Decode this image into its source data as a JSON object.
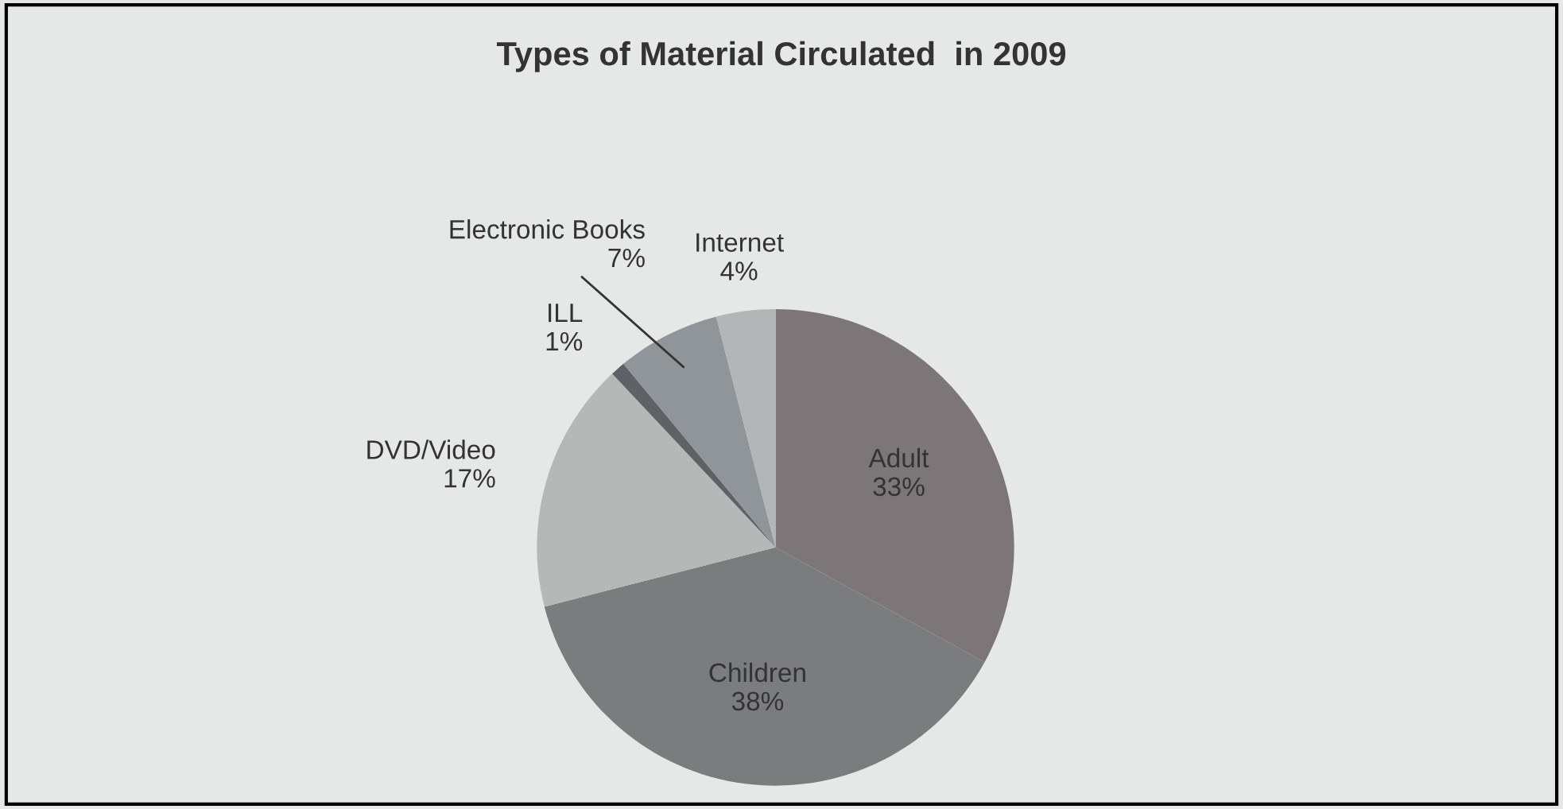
{
  "chart_data": {
    "type": "pie",
    "title": "Types of Material Circulated  in 2009",
    "categories": [
      "Adult",
      "Children",
      "DVD/Video",
      "ILL",
      "Electronic Books",
      "Internet"
    ],
    "values": [
      33,
      38,
      17,
      1,
      7,
      4
    ],
    "value_labels": [
      "33%",
      "38%",
      "17%",
      "1%",
      "7%",
      "4%"
    ],
    "colors": [
      "#7c7679",
      "#7a7c7e",
      "#b6b8b8",
      "#5e6266",
      "#8f9599",
      "#b2b6b6"
    ],
    "legend": false
  }
}
